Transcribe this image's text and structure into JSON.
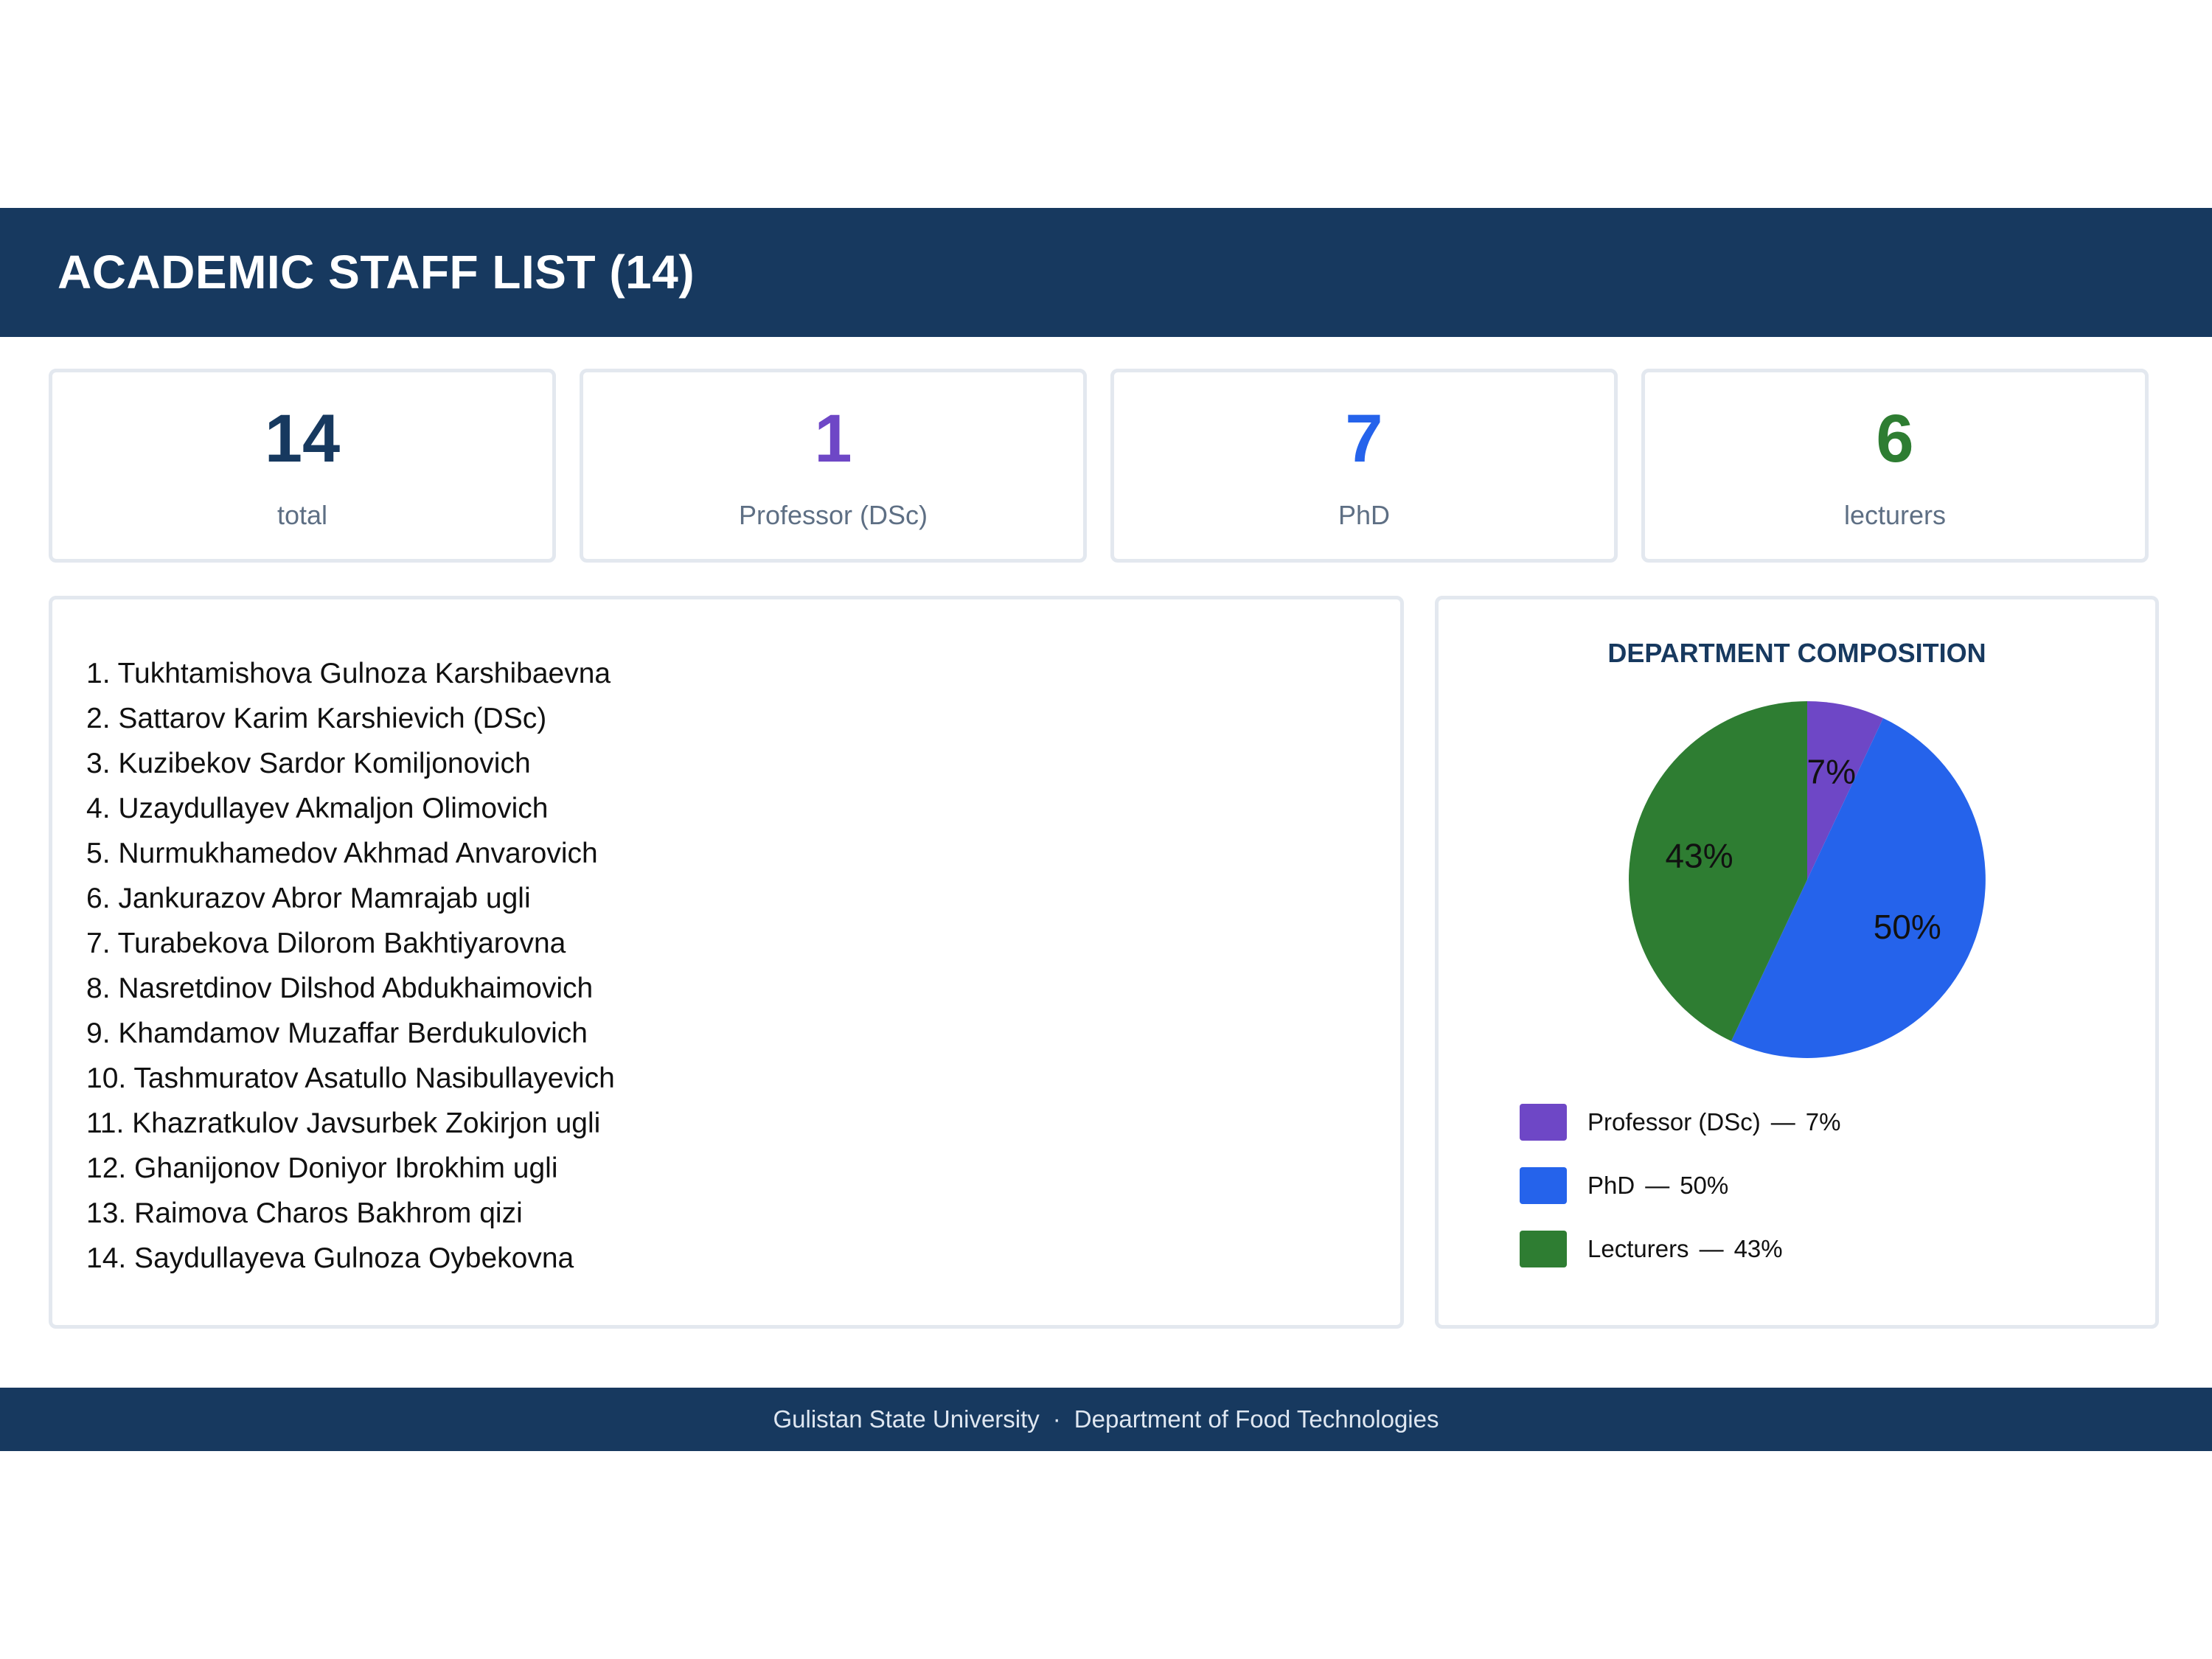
{
  "header": {
    "title": "ACADEMIC STAFF LIST (14)"
  },
  "stats": [
    {
      "value": "14",
      "label": "total",
      "color": "#17395f"
    },
    {
      "value": "1",
      "label": "Professor (DSc)",
      "color": "#6e47c6"
    },
    {
      "value": "7",
      "label": "PhD",
      "color": "#2563eb"
    },
    {
      "value": "6",
      "label": "lecturers",
      "color": "#2e7d32"
    }
  ],
  "staff": [
    "1.  Tukhtamishova Gulnoza Karshibaevna",
    "2.  Sattarov Karim Karshievich (DSc)",
    "3.  Kuzibekov Sardor Komiljonovich",
    "4.  Uzaydullayev Akmaljon Olimovich",
    "5.  Nurmukhamedov Akhmad Anvarovich",
    "6.  Jankurazov Abror Mamrajab ugli",
    "7.  Turabekova Dilorom Bakhtiyarovna",
    "8.  Nasretdinov Dilshod Abdukhaimovich",
    "9.  Khamdamov Muzaffar Berdukulovich",
    "10. Tashmuratov Asatullo Nasibullayevich",
    "11. Khazratkulov Javsurbek Zokirjon ugli",
    "12. Ghanijonov Doniyor Ibrokhim ugli",
    "13. Raimova Charos Bakhrom qizi",
    "14. Saydullayeva Gulnoza Oybekovna"
  ],
  "chart_data": {
    "type": "pie",
    "title": "DEPARTMENT COMPOSITION",
    "slices": [
      {
        "label": "Professor (DSc)",
        "value": 7,
        "display": "7%",
        "color": "#6e47c6"
      },
      {
        "label": "PhD",
        "value": 50,
        "display": "50%",
        "color": "#2563eb"
      },
      {
        "label": "Lecturers",
        "value": 43,
        "display": "43%",
        "color": "#2e7d32"
      }
    ],
    "legend": "bottom"
  },
  "footer": {
    "university": "Gulistan State University",
    "separator": "·",
    "department": "Department of Food Technologies"
  }
}
